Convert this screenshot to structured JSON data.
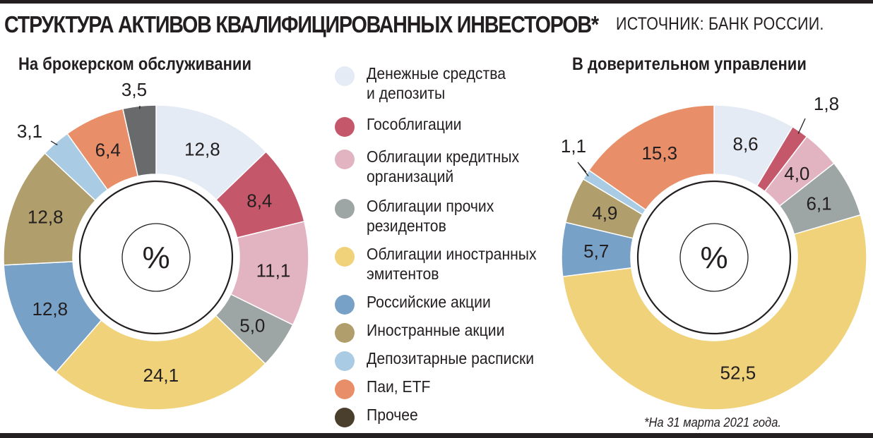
{
  "header": {
    "title": "СТРУКТУРА АКТИВОВ КВАЛИФИЦИРОВАННЫХ ИНВЕСТОРОВ*",
    "source": "ИСТОЧНИК: БАНК РОССИИ."
  },
  "footnote": "*На 31 марта 2021 года.",
  "legend": [
    {
      "label": "Денежные средства\nи депозиты",
      "color": "#e4ebf4"
    },
    {
      "label": "Гособлигации",
      "color": "#c4586a"
    },
    {
      "label": "Облигации кредитных\nорганизаций",
      "color": "#e2b4c2"
    },
    {
      "label": "Облигации прочих\nрезидентов",
      "color": "#9ea6a5"
    },
    {
      "label": "Облигации иностранных\nэмитентов",
      "color": "#efd27a"
    },
    {
      "label": "Российские акции",
      "color": "#78a1c8"
    },
    {
      "label": "Иностранные акции",
      "color": "#b09f6c"
    },
    {
      "label": "Депозитарные расписки",
      "color": "#a9cbe3"
    },
    {
      "label": "Паи, ETF",
      "color": "#e88e69"
    },
    {
      "label": "Прочее",
      "color": "#4a3e2c"
    }
  ],
  "chart_data": [
    {
      "type": "pie",
      "title": "На брокерском обслуживании",
      "center_label": "%",
      "categories": [
        "Денежные средства и депозиты",
        "Гособлигации",
        "Облигации кредитных организаций",
        "Облигации прочих резидентов",
        "Облигации иностранных эмитентов",
        "Российские акции",
        "Иностранные акции",
        "Депозитарные расписки",
        "Паи, ETF",
        "Прочее"
      ],
      "values": [
        12.8,
        8.4,
        11.1,
        5.0,
        24.1,
        12.8,
        12.8,
        3.1,
        6.4,
        3.5
      ],
      "labels": [
        "12,8",
        "8,4",
        "11,1",
        "5,0",
        "24,1",
        "12,8",
        "12,8",
        "3,1",
        "6,4",
        "3,5"
      ],
      "colors": [
        "#e4ebf4",
        "#c4586a",
        "#e2b4c2",
        "#9ea6a5",
        "#efd27a",
        "#78a1c8",
        "#b09f6c",
        "#a9cbe3",
        "#e88e69",
        "#696a6b"
      ]
    },
    {
      "type": "pie",
      "title": "В доверительном управлении",
      "center_label": "%",
      "categories": [
        "Денежные средства и депозиты",
        "Гособлигации",
        "Облигации кредитных организаций",
        "Облигации прочих резидентов",
        "Облигации иностранных эмитентов",
        "Российские акции",
        "Иностранные акции",
        "Депозитарные расписки",
        "Паи, ETF"
      ],
      "values": [
        8.6,
        1.8,
        4.0,
        6.1,
        52.5,
        5.7,
        4.9,
        1.1,
        15.3
      ],
      "labels": [
        "8,6",
        "1,8",
        "4,0",
        "6,1",
        "52,5",
        "5,7",
        "4,9",
        "1,1",
        "15,3"
      ],
      "colors": [
        "#e4ebf4",
        "#c4586a",
        "#e2b4c2",
        "#9ea6a5",
        "#efd27a",
        "#78a1c8",
        "#b09f6c",
        "#a9cbe3",
        "#e88e69"
      ]
    }
  ]
}
